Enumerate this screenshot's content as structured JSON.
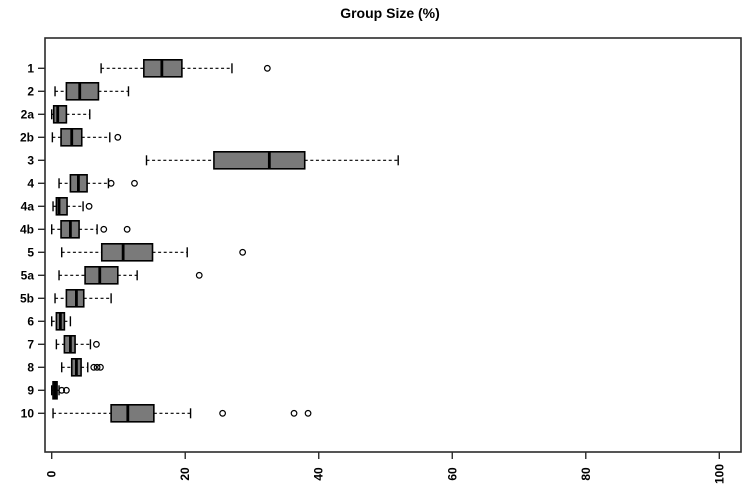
{
  "title": "Group Size (%)",
  "chart_data": {
    "type": "boxplot",
    "orientation": "horizontal",
    "title": "Group Size (%)",
    "xlabel": "",
    "ylabel": "",
    "xlim": [
      0,
      100
    ],
    "x_ticks": [
      0,
      20,
      40,
      60,
      80,
      100
    ],
    "grid": false,
    "legend": null,
    "box_fill_color": "#7a7a7a",
    "line_color": "#000000",
    "categories": [
      "1",
      "2",
      "2a",
      "2b",
      "3",
      "4",
      "4a",
      "4b",
      "5",
      "5a",
      "5b",
      "6",
      "7",
      "8",
      "9",
      "10"
    ],
    "boxes": [
      {
        "label": "1",
        "low": 7.4,
        "q1": 13.8,
        "median": 16.5,
        "q3": 19.5,
        "high": 27.0,
        "outliers": [
          32.3
        ]
      },
      {
        "label": "2",
        "low": 0.5,
        "q1": 2.2,
        "median": 4.2,
        "q3": 7.0,
        "high": 11.5,
        "outliers": []
      },
      {
        "label": "2a",
        "low": 0.0,
        "q1": 0.3,
        "median": 0.9,
        "q3": 2.2,
        "high": 5.7,
        "outliers": []
      },
      {
        "label": "2b",
        "low": 0.1,
        "q1": 1.4,
        "median": 3.0,
        "q3": 4.5,
        "high": 8.7,
        "outliers": [
          9.9
        ]
      },
      {
        "label": "3",
        "low": 14.2,
        "q1": 24.3,
        "median": 32.6,
        "q3": 37.9,
        "high": 51.9,
        "outliers": []
      },
      {
        "label": "4",
        "low": 1.1,
        "q1": 2.8,
        "median": 4.0,
        "q3": 5.3,
        "high": 8.5,
        "outliers": [
          8.9,
          12.4
        ]
      },
      {
        "label": "4a",
        "low": 0.2,
        "q1": 0.7,
        "median": 1.1,
        "q3": 2.3,
        "high": 4.7,
        "outliers": [
          5.6
        ]
      },
      {
        "label": "4b",
        "low": 0.0,
        "q1": 1.4,
        "median": 2.8,
        "q3": 4.1,
        "high": 6.8,
        "outliers": [
          7.8,
          11.3
        ]
      },
      {
        "label": "5",
        "low": 1.5,
        "q1": 7.5,
        "median": 10.7,
        "q3": 15.1,
        "high": 20.3,
        "outliers": [
          28.6
        ]
      },
      {
        "label": "5a",
        "low": 1.1,
        "q1": 5.0,
        "median": 7.2,
        "q3": 9.9,
        "high": 12.8,
        "outliers": [
          22.1
        ]
      },
      {
        "label": "5b",
        "low": 0.5,
        "q1": 2.2,
        "median": 3.7,
        "q3": 4.8,
        "high": 8.9,
        "outliers": []
      },
      {
        "label": "6",
        "low": 0.0,
        "q1": 0.7,
        "median": 1.3,
        "q3": 1.9,
        "high": 2.8,
        "outliers": []
      },
      {
        "label": "7",
        "low": 0.7,
        "q1": 1.9,
        "median": 2.8,
        "q3": 3.5,
        "high": 5.8,
        "outliers": [
          6.7
        ]
      },
      {
        "label": "8",
        "low": 1.5,
        "q1": 3.0,
        "median": 3.7,
        "q3": 4.4,
        "high": 5.4,
        "outliers": [
          6.3,
          6.8,
          7.3
        ]
      },
      {
        "label": "9",
        "low": 0.0,
        "q1": 0.2,
        "median": 0.5,
        "q3": 0.8,
        "high": 1.1,
        "outliers": [
          1.5,
          2.2
        ]
      },
      {
        "label": "10",
        "low": 0.2,
        "q1": 8.9,
        "median": 11.4,
        "q3": 15.3,
        "high": 20.8,
        "outliers": [
          25.6,
          36.3,
          38.4
        ]
      }
    ]
  }
}
